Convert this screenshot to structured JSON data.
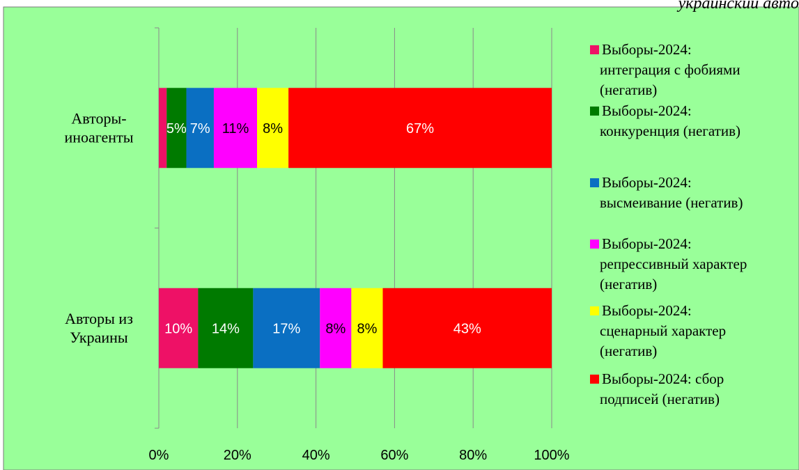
{
  "corner_note": "украинский авто",
  "chart_data": {
    "type": "bar",
    "orientation": "horizontal",
    "stacked": "percent",
    "categories": [
      "Авторы-\nиноагенты",
      "Авторы из\nУкраины"
    ],
    "series": [
      {
        "name": "Выборы-2024: интеграция с фобиями (негатив)",
        "color": "#ee1166",
        "values": [
          2,
          10
        ],
        "labels": [
          "",
          "10%"
        ],
        "label_color": "#ffffff"
      },
      {
        "name": "Выборы-2024: конкуренция (негатив)",
        "color": "#007a00",
        "values": [
          5,
          14
        ],
        "labels": [
          "5%",
          "14%"
        ],
        "label_color": "#ffffff"
      },
      {
        "name": "Выборы-2024: высмеивание (негатив)",
        "color": "#0a6fc2",
        "values": [
          7,
          17
        ],
        "labels": [
          "7%",
          "17%"
        ],
        "label_color": "#ffffff"
      },
      {
        "name": "Выборы-2024: репрессивный характер (негатив)",
        "color": "#ff00ff",
        "values": [
          11,
          8
        ],
        "labels": [
          "11%",
          "8%"
        ],
        "label_color": "#000000"
      },
      {
        "name": "Выборы-2024: сценарный характер (негатив)",
        "color": "#ffff00",
        "values": [
          8,
          8
        ],
        "labels": [
          "8%",
          "8%"
        ],
        "label_color": "#000000"
      },
      {
        "name": "Выборы-2024: сбор подписей (негатив)",
        "color": "#ff0000",
        "values": [
          67,
          43
        ],
        "labels": [
          "67%",
          "43%"
        ],
        "label_color": "#ffffff"
      }
    ],
    "legend_lines": [
      [
        "Выборы-2024:",
        "интеграция с фобиями",
        "(негатив)"
      ],
      [
        "Выборы-2024:",
        "конкуренция (негатив)"
      ],
      [
        "Выборы-2024:",
        "высмеивание (негатив)"
      ],
      [
        "Выборы-2024:",
        "репрессивный характер",
        "(негатив)"
      ],
      [
        "Выборы-2024:",
        "сценарный характер",
        "(негатив)"
      ],
      [
        "Выборы-2024: сбор",
        "подписей (негатив)"
      ]
    ],
    "x_ticks": [
      "0%",
      "20%",
      "40%",
      "60%",
      "80%",
      "100%"
    ],
    "xlim": [
      0,
      100
    ],
    "grid": true,
    "legend_position": "right",
    "background_color": "#99ff99"
  }
}
